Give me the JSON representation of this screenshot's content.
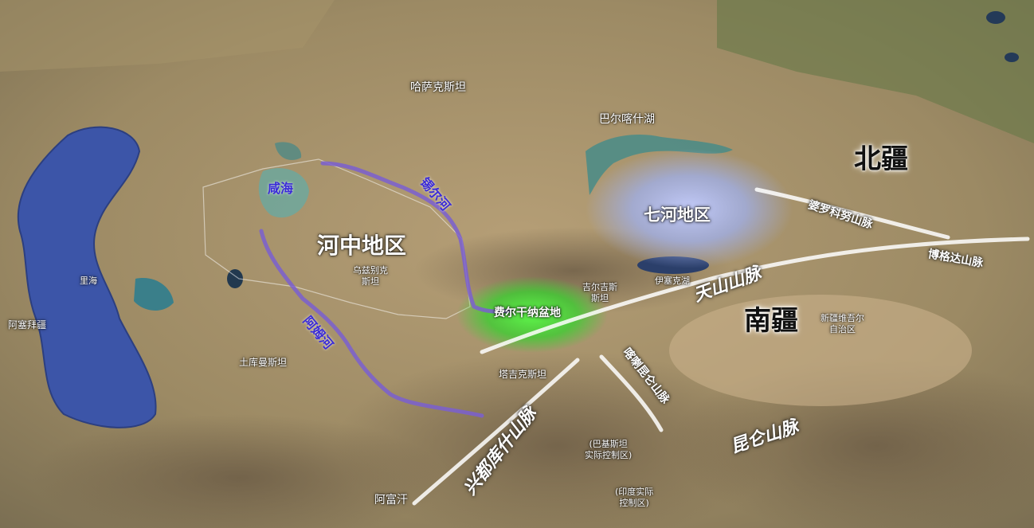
{
  "labels": {
    "kazakhstan": "哈萨克斯坦",
    "balkhash": "巴尔喀什湖",
    "north_xinjiang": "北疆",
    "aral": "咸海",
    "syr_darya": "锡尔河",
    "amu_darya": "阿姆河",
    "transoxiana": "河中地区",
    "uzbekistan": "乌兹别克\n斯坦",
    "semirechye": "七河地区",
    "kyrgyzstan": "吉尔吉斯\n斯坦",
    "issyk_kul": "伊塞克湖",
    "fergana": "费尔干纳盆地",
    "caspian": "里海",
    "azerbaijan": "阿塞拜疆",
    "turkmenistan": "土库曼斯坦",
    "tajikistan": "塔吉克斯坦",
    "south_xinjiang": "南疆",
    "xinjiang": "新疆维吾尔\n自治区",
    "pakistan_control": "(巴基斯坦\n实际控制区)",
    "india_control": "(印度实际\n控制区)",
    "afghanistan": "阿富汗"
  },
  "mountains": {
    "borohoro": "婆罗科努山脉",
    "bogda": "博格达山脉",
    "tianshan": "天山山脉",
    "karakoram": "喀喇昆仑山脉",
    "kunlun": "昆仑山脉",
    "hindu_kush": "兴都库什山脉"
  },
  "colors": {
    "river": "#7a5fd0",
    "mountain_line": "#ffffff",
    "caspian_water": "#3c55a8",
    "semirechye_glow": "#a9b6ff",
    "fergana_glow": "#3cff3c"
  }
}
